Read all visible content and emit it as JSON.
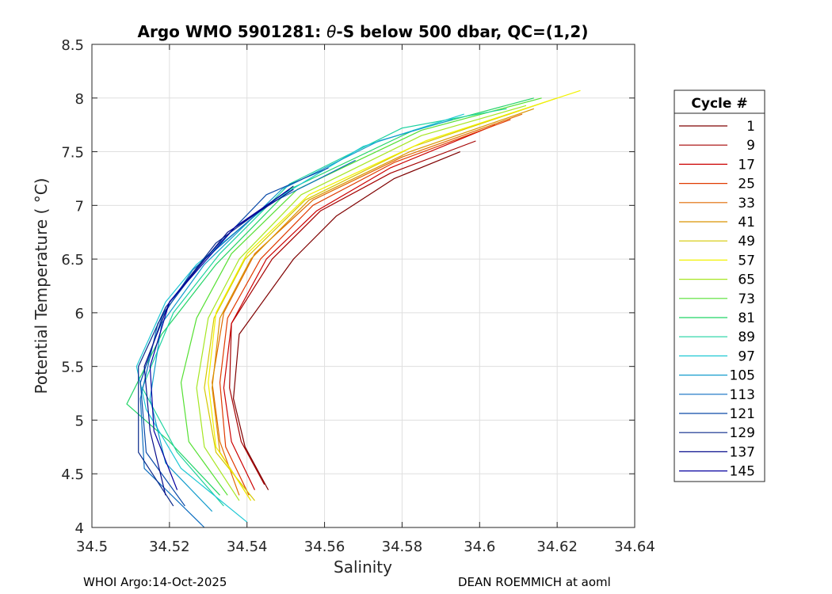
{
  "chart_data": {
    "type": "line",
    "title": "Argo WMO 5901281: θ-S below 500 dbar,  QC=(1,2)",
    "title_parts": [
      "Argo WMO 5901281: ",
      "θ",
      "-S below 500 dbar,  QC=(1,2)"
    ],
    "xlabel": "Salinity",
    "ylabel": "Potential Temperature ( °C)",
    "xlim": [
      34.5,
      34.64
    ],
    "ylim": [
      4,
      8.5
    ],
    "xticks": [
      "34.5",
      "34.52",
      "34.54",
      "34.56",
      "34.58",
      "34.6",
      "34.62",
      "34.64"
    ],
    "yticks": [
      "4",
      "4.5",
      "5",
      "5.5",
      "6",
      "6.5",
      "7",
      "7.5",
      "8",
      "8.5"
    ],
    "grid": true,
    "legend": {
      "title": "Cycle #",
      "placement": "right, outside plot",
      "entries": [
        {
          "label": "1",
          "color": "#7f0000"
        },
        {
          "label": "9",
          "color": "#a50000"
        },
        {
          "label": "17",
          "color": "#cc0000"
        },
        {
          "label": "25",
          "color": "#e03a00"
        },
        {
          "label": "33",
          "color": "#e06a00"
        },
        {
          "label": "41",
          "color": "#d99400"
        },
        {
          "label": "49",
          "color": "#d4c800"
        },
        {
          "label": "57",
          "color": "#f2f200"
        },
        {
          "label": "65",
          "color": "#a6e622"
        },
        {
          "label": "73",
          "color": "#55e033"
        },
        {
          "label": "81",
          "color": "#22d466"
        },
        {
          "label": "89",
          "color": "#1ed3a0"
        },
        {
          "label": "97",
          "color": "#1ec8d4"
        },
        {
          "label": "105",
          "color": "#139ccc"
        },
        {
          "label": "113",
          "color": "#0e6ec0"
        },
        {
          "label": "121",
          "color": "#0a4aa8"
        },
        {
          "label": "129",
          "color": "#09298a"
        },
        {
          "label": "137",
          "color": "#070d8c"
        },
        {
          "label": "145",
          "color": "#0600a0"
        }
      ]
    },
    "series": [
      {
        "color": "#7f0000",
        "points": [
          [
            34.5455,
            4.35
          ],
          [
            34.5395,
            4.75
          ],
          [
            34.5365,
            5.2
          ],
          [
            34.538,
            5.8
          ],
          [
            34.552,
            6.5
          ],
          [
            34.563,
            6.9
          ],
          [
            34.578,
            7.25
          ],
          [
            34.595,
            7.5
          ]
        ]
      },
      {
        "color": "#a50000",
        "points": [
          [
            34.5445,
            4.4
          ],
          [
            34.5385,
            4.8
          ],
          [
            34.5355,
            5.3
          ],
          [
            34.536,
            5.9
          ],
          [
            34.5465,
            6.5
          ],
          [
            34.559,
            6.95
          ],
          [
            34.577,
            7.3
          ],
          [
            34.599,
            7.6
          ]
        ]
      },
      {
        "color": "#cc0000",
        "points": [
          [
            34.542,
            4.35
          ],
          [
            34.536,
            4.8
          ],
          [
            34.534,
            5.3
          ],
          [
            34.536,
            5.9
          ],
          [
            34.545,
            6.5
          ],
          [
            34.558,
            6.95
          ],
          [
            34.577,
            7.35
          ],
          [
            34.604,
            7.75
          ]
        ]
      },
      {
        "color": "#e03a00",
        "points": [
          [
            34.5405,
            4.3
          ],
          [
            34.5345,
            4.75
          ],
          [
            34.533,
            5.35
          ],
          [
            34.535,
            5.95
          ],
          [
            34.5435,
            6.5
          ],
          [
            34.557,
            7.0
          ],
          [
            34.578,
            7.4
          ],
          [
            34.608,
            7.8
          ]
        ]
      },
      {
        "color": "#e06a00",
        "points": [
          [
            34.538,
            4.3
          ],
          [
            34.533,
            4.8
          ],
          [
            34.531,
            5.35
          ],
          [
            34.534,
            6.0
          ],
          [
            34.542,
            6.55
          ],
          [
            34.557,
            7.05
          ],
          [
            34.58,
            7.45
          ],
          [
            34.611,
            7.85
          ]
        ]
      },
      {
        "color": "#d99400",
        "points": [
          [
            34.541,
            4.25
          ],
          [
            34.533,
            4.7
          ],
          [
            34.531,
            5.3
          ],
          [
            34.533,
            5.95
          ],
          [
            34.541,
            6.5
          ],
          [
            34.556,
            7.05
          ],
          [
            34.582,
            7.5
          ],
          [
            34.614,
            7.9
          ]
        ]
      },
      {
        "color": "#d4c800",
        "points": [
          [
            34.542,
            4.25
          ],
          [
            34.532,
            4.7
          ],
          [
            34.529,
            5.3
          ],
          [
            34.5315,
            5.95
          ],
          [
            34.5395,
            6.5
          ],
          [
            34.555,
            7.05
          ],
          [
            34.583,
            7.55
          ],
          [
            34.62,
            8.0
          ]
        ]
      },
      {
        "color": "#f2f200",
        "points": [
          [
            34.541,
            4.25
          ],
          [
            34.532,
            4.75
          ],
          [
            34.53,
            5.35
          ],
          [
            34.532,
            6.0
          ],
          [
            34.54,
            6.55
          ],
          [
            34.556,
            7.1
          ],
          [
            34.586,
            7.6
          ],
          [
            34.626,
            8.07
          ]
        ]
      },
      {
        "color": "#a6e622",
        "points": [
          [
            34.538,
            4.25
          ],
          [
            34.529,
            4.75
          ],
          [
            34.527,
            5.3
          ],
          [
            34.53,
            5.95
          ],
          [
            34.538,
            6.5
          ],
          [
            34.554,
            7.1
          ],
          [
            34.585,
            7.65
          ],
          [
            34.612,
            7.93
          ]
        ]
      },
      {
        "color": "#55e033",
        "points": [
          [
            34.535,
            4.3
          ],
          [
            34.525,
            4.8
          ],
          [
            34.523,
            5.35
          ],
          [
            34.527,
            5.95
          ],
          [
            34.536,
            6.55
          ],
          [
            34.553,
            7.15
          ],
          [
            34.585,
            7.7
          ],
          [
            34.616,
            8.0
          ]
        ]
      },
      {
        "color": "#22d466",
        "points": [
          [
            34.533,
            4.3
          ],
          [
            34.52,
            4.8
          ],
          [
            34.509,
            5.15
          ],
          [
            34.518,
            5.8
          ],
          [
            34.532,
            6.45
          ],
          [
            34.551,
            7.15
          ],
          [
            34.583,
            7.7
          ],
          [
            34.614,
            8.0
          ]
        ]
      },
      {
        "color": "#1ed3a0",
        "points": [
          [
            34.534,
            4.2
          ],
          [
            34.522,
            4.7
          ],
          [
            34.513,
            5.3
          ],
          [
            34.521,
            6.0
          ],
          [
            34.533,
            6.55
          ],
          [
            34.551,
            7.2
          ],
          [
            34.58,
            7.72
          ],
          [
            34.607,
            7.9
          ]
        ]
      },
      {
        "color": "#1ec8d4",
        "points": [
          [
            34.54,
            4.05
          ],
          [
            34.523,
            4.55
          ],
          [
            34.514,
            5.1
          ],
          [
            34.5115,
            5.5
          ],
          [
            34.519,
            6.1
          ],
          [
            34.527,
            6.45
          ],
          [
            34.547,
            7.05
          ],
          [
            34.57,
            7.55
          ],
          [
            34.596,
            7.85
          ]
        ]
      },
      {
        "color": "#139ccc",
        "points": [
          [
            34.531,
            4.15
          ],
          [
            34.519,
            4.6
          ],
          [
            34.515,
            5.2
          ],
          [
            34.518,
            5.9
          ],
          [
            34.529,
            6.45
          ],
          [
            34.549,
            7.15
          ],
          [
            34.574,
            7.6
          ],
          [
            34.593,
            7.8
          ]
        ]
      },
      {
        "color": "#0e6ec0",
        "points": [
          [
            34.529,
            4.0
          ],
          [
            34.5135,
            4.55
          ],
          [
            34.5125,
            5.2
          ],
          [
            34.517,
            5.9
          ],
          [
            34.526,
            6.4
          ],
          [
            34.545,
            7.0
          ],
          [
            34.568,
            7.42
          ]
        ]
      },
      {
        "color": "#0a4aa8",
        "points": [
          [
            34.524,
            4.2
          ],
          [
            34.514,
            4.7
          ],
          [
            34.5125,
            5.35
          ],
          [
            34.5185,
            6.0
          ],
          [
            34.529,
            6.5
          ],
          [
            34.545,
            7.1
          ],
          [
            34.561,
            7.35
          ]
        ]
      },
      {
        "color": "#09298a",
        "points": [
          [
            34.521,
            4.2
          ],
          [
            34.512,
            4.7
          ],
          [
            34.512,
            5.5
          ],
          [
            34.519,
            6.05
          ],
          [
            34.532,
            6.65
          ],
          [
            34.552,
            7.18
          ]
        ]
      },
      {
        "color": "#070d8c",
        "points": [
          [
            34.519,
            4.3
          ],
          [
            34.515,
            4.9
          ],
          [
            34.5135,
            5.5
          ],
          [
            34.52,
            6.1
          ],
          [
            34.535,
            6.75
          ],
          [
            34.552,
            7.15
          ]
        ]
      },
      {
        "color": "#0600a0",
        "points": [
          [
            34.522,
            4.35
          ],
          [
            34.516,
            4.9
          ],
          [
            34.515,
            5.5
          ],
          [
            34.52,
            6.1
          ],
          [
            34.537,
            6.8
          ],
          [
            34.551,
            7.15
          ]
        ]
      }
    ]
  },
  "footer": {
    "left": "WHOI Argo:14-Oct-2025",
    "right": "DEAN ROEMMICH at aoml"
  }
}
